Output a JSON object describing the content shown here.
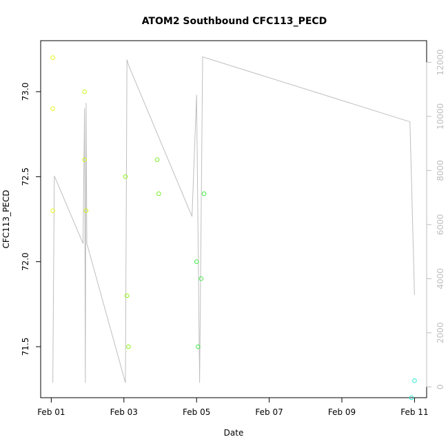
{
  "chart_data": {
    "type": "scatter",
    "title": "ATOM2 Southbound CFC113_PECD",
    "xlabel": "Date",
    "ylabel": "CFC113_PECD",
    "x_ticks": [
      "Feb 01",
      "Feb 03",
      "Feb 05",
      "Feb 07",
      "Feb 09",
      "Feb 11"
    ],
    "y_ticks": [
      "71.5",
      "72.0",
      "72.5",
      "73.0"
    ],
    "y2_ticks": [
      "0",
      "2000",
      "4000",
      "6000",
      "8000",
      "10000",
      "12000"
    ],
    "xlim": [
      "2017-01-31T17:00",
      "2017-02-11T08:00"
    ],
    "ylim": [
      71.2,
      73.3
    ],
    "y2lim": [
      -400,
      12800
    ],
    "grid": false,
    "legend": "none",
    "series": [
      {
        "type": "scatter",
        "axis": "left",
        "points": [
          {
            "x": "2017-02-01T01:00",
            "y": 73.2,
            "color": "#e6f51a"
          },
          {
            "x": "2017-02-01T01:00",
            "y": 72.9,
            "color": "#e6f51a"
          },
          {
            "x": "2017-02-01T01:00",
            "y": 72.3,
            "color": "#e6f51a"
          },
          {
            "x": "2017-02-01T22:00",
            "y": 73.0,
            "color": "#ccf51a"
          },
          {
            "x": "2017-02-01T22:00",
            "y": 72.6,
            "color": "#ccf51a"
          },
          {
            "x": "2017-02-01T23:00",
            "y": 72.3,
            "color": "#ccf51a"
          },
          {
            "x": "2017-02-03T01:00",
            "y": 72.5,
            "color": "#90f01a"
          },
          {
            "x": "2017-02-03T02:00",
            "y": 71.8,
            "color": "#90f01a"
          },
          {
            "x": "2017-02-03T03:00",
            "y": 71.5,
            "color": "#90f01a"
          },
          {
            "x": "2017-02-03T22:00",
            "y": 72.6,
            "color": "#7aee2a"
          },
          {
            "x": "2017-02-03T23:00",
            "y": 72.4,
            "color": "#7aee2a"
          },
          {
            "x": "2017-02-05T00:00",
            "y": 72.0,
            "color": "#44e84a"
          },
          {
            "x": "2017-02-05T01:00",
            "y": 71.5,
            "color": "#44e84a"
          },
          {
            "x": "2017-02-05T03:00",
            "y": 71.9,
            "color": "#44e84a"
          },
          {
            "x": "2017-02-05T05:00",
            "y": 72.4,
            "color": "#44e84a"
          },
          {
            "x": "2017-02-10T22:00",
            "y": 71.2,
            "color": "#2ee8d0"
          },
          {
            "x": "2017-02-11T00:00",
            "y": 71.3,
            "color": "#2ee8d0"
          }
        ]
      },
      {
        "type": "line",
        "axis": "right",
        "color": "#bebebe",
        "points": [
          {
            "x": "2017-02-01T01:00",
            "y": 150
          },
          {
            "x": "2017-02-01T02:00",
            "y": 7800
          },
          {
            "x": "2017-02-01T21:00",
            "y": 5300
          },
          {
            "x": "2017-02-01T22:00",
            "y": 10300
          },
          {
            "x": "2017-02-01T22:30",
            "y": 150
          },
          {
            "x": "2017-02-01T23:00",
            "y": 10500
          },
          {
            "x": "2017-02-01T23:30",
            "y": 5300
          },
          {
            "x": "2017-02-03T01:00",
            "y": 150
          },
          {
            "x": "2017-02-03T02:00",
            "y": 12100
          },
          {
            "x": "2017-02-03T03:00",
            "y": 11900
          },
          {
            "x": "2017-02-04T21:00",
            "y": 6300
          },
          {
            "x": "2017-02-05T00:00",
            "y": 10800
          },
          {
            "x": "2017-02-05T02:00",
            "y": 150
          },
          {
            "x": "2017-02-05T04:00",
            "y": 12200
          },
          {
            "x": "2017-02-10T21:00",
            "y": 9800
          },
          {
            "x": "2017-02-11T00:00",
            "y": 3400
          }
        ]
      }
    ]
  }
}
